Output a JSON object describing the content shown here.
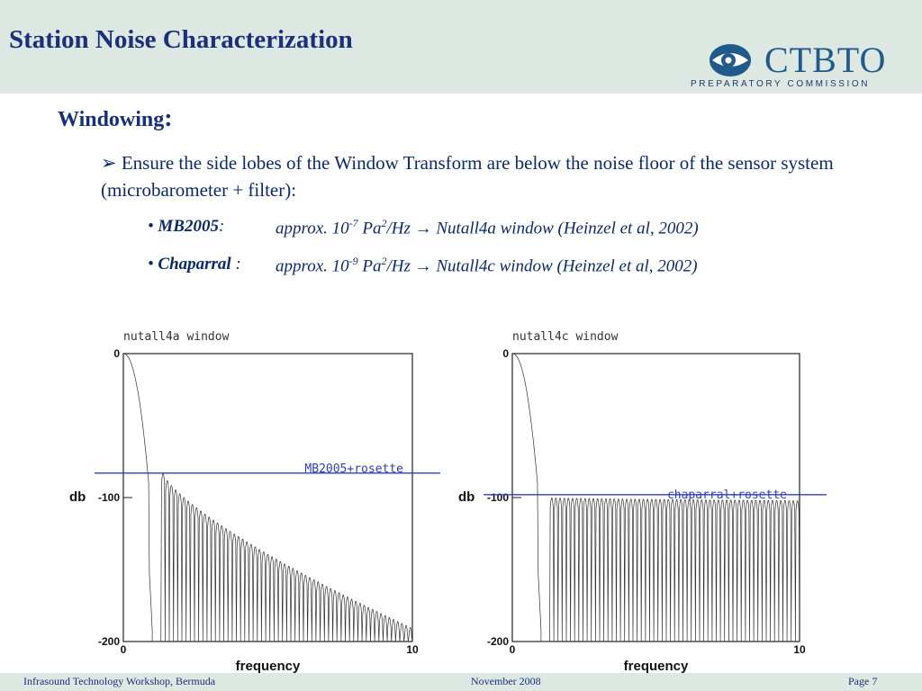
{
  "header": {
    "title": "Station Noise Characterization",
    "logo_text": "CTBTO",
    "logo_subtitle": "PREPARATORY COMMISSION",
    "logo_icon": "eye-icon"
  },
  "section": {
    "heading": "Windowing",
    "heading_colon": ":",
    "bullet_marker": "➢",
    "bullet_text": "Ensure the side lobes of the  Window Transform are below the noise floor of the sensor system (microbarometer + filter):",
    "items": [
      {
        "name": "MB2005",
        "sep": ":",
        "approx_pre": "approx. 10",
        "exp": "-7",
        "unit": " Pa",
        "unit_exp": "2",
        "rest": "/Hz →  Nutall4a  window (Heinzel et al, 2002)"
      },
      {
        "name": "Chaparral",
        "sep": " :",
        "approx_pre": "approx. 10",
        "exp": "-9",
        "unit": " Pa",
        "unit_exp": "2",
        "rest": "/Hz →  Nutall4c  window (Heinzel et al, 2002)"
      }
    ]
  },
  "colors": {
    "header_bg": "#dde8e3",
    "title": "#1b2f7a",
    "text": "#0b2a6b",
    "threshold_line": "#2e3fbf",
    "curve": "#333333"
  },
  "chart_data": [
    {
      "type": "line",
      "title": "nutall4a window",
      "xlabel": "frequency",
      "ylabel": "db",
      "xlim": [
        0,
        10
      ],
      "ylim": [
        -200,
        0
      ],
      "x_ticks": [
        "0",
        "10"
      ],
      "y_ticks": [
        "0",
        "-100",
        "-200"
      ],
      "mainlobe_end": 1.0,
      "sidelobe_start": 1.3,
      "sidelobe_peak_db_start": -83,
      "sidelobe_peak_db_end": -190,
      "sidelobe_count": 60,
      "threshold": {
        "label": "MB2005+rosette",
        "db": -83
      }
    },
    {
      "type": "line",
      "title": "nutall4c window",
      "xlabel": "frequency",
      "ylabel": "db",
      "xlim": [
        0,
        10
      ],
      "ylim": [
        -200,
        0
      ],
      "x_ticks": [
        "0",
        "10"
      ],
      "y_ticks": [
        "0",
        "-100",
        "-200"
      ],
      "mainlobe_end": 1.0,
      "sidelobe_start": 1.3,
      "sidelobe_peak_db_start": -100,
      "sidelobe_peak_db_end": -102,
      "sidelobe_count": 60,
      "threshold": {
        "label": "chaparral+rosette",
        "db": -98
      }
    }
  ],
  "footer": {
    "left": "Infrasound Technology Workshop, Bermuda",
    "center": "November 2008",
    "right": "Page 7"
  }
}
